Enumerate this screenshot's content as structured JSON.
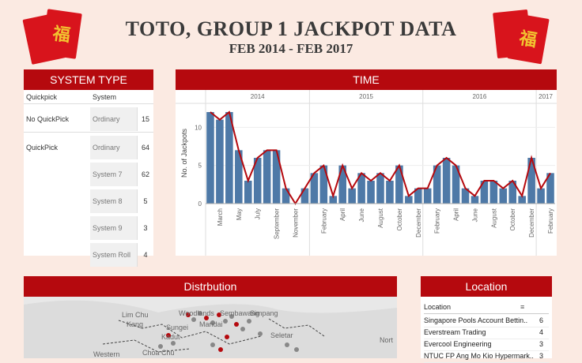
{
  "header": {
    "title": "TOTO, GROUP 1 JACKPOT DATA",
    "subtitle": "FEB 2014 - FEB 2017",
    "envelope_glyph": "福"
  },
  "system_type": {
    "title": "SYSTEM TYPE",
    "col_quickpick": "Quickpick",
    "col_system": "System",
    "rows": [
      {
        "quickpick": "No QuickPick",
        "system": "Ordinary",
        "count": "15"
      },
      {
        "quickpick": "QuickPick",
        "system": "Ordinary",
        "count": "64"
      },
      {
        "quickpick": "",
        "system": "System 7",
        "count": "62"
      },
      {
        "quickpick": "",
        "system": "System 8",
        "count": "5"
      },
      {
        "quickpick": "",
        "system": "System 9",
        "count": "3"
      },
      {
        "quickpick": "",
        "system": "System Roll",
        "count": "4"
      }
    ]
  },
  "time": {
    "title": "TIME",
    "years": [
      "2014",
      "2015",
      "2016",
      "2017"
    ],
    "ylabel": "No. of Jackpots",
    "yticks": [
      "0",
      "5",
      "10"
    ],
    "month_labels": [
      {
        "i": 1,
        "t": "March"
      },
      {
        "i": 3,
        "t": "May"
      },
      {
        "i": 5,
        "t": "July"
      },
      {
        "i": 7,
        "t": "September"
      },
      {
        "i": 9,
        "t": "November"
      },
      {
        "i": 12,
        "t": "February"
      },
      {
        "i": 14,
        "t": "April"
      },
      {
        "i": 16,
        "t": "June"
      },
      {
        "i": 18,
        "t": "August"
      },
      {
        "i": 20,
        "t": "October"
      },
      {
        "i": 22,
        "t": "December"
      },
      {
        "i": 24,
        "t": "February"
      },
      {
        "i": 26,
        "t": "April"
      },
      {
        "i": 28,
        "t": "June"
      },
      {
        "i": 30,
        "t": "August"
      },
      {
        "i": 32,
        "t": "October"
      },
      {
        "i": 34,
        "t": "December"
      },
      {
        "i": 36,
        "t": "February"
      }
    ]
  },
  "distribution": {
    "title": "Distrbution",
    "map_labels": [
      "Lim Chu",
      "Kang",
      "Woodlands",
      "Sembawang",
      "Simpang",
      "Sungei",
      "Kadut",
      "Mandai",
      "Seletar",
      "Western",
      "Choa Chu",
      "Nort"
    ]
  },
  "location": {
    "title": "Location",
    "col_label": "Location",
    "rows": [
      {
        "name": "Singapore Pools Account Bettin..",
        "count": "6"
      },
      {
        "name": "Everstream Trading",
        "count": "4"
      },
      {
        "name": "Evercool Engineering",
        "count": "3"
      },
      {
        "name": "NTUC FP Ang Mo Kio Hypermark..",
        "count": "3"
      }
    ]
  },
  "colors": {
    "accent": "#b5090e",
    "bar": "#4e79a7",
    "line": "#b5090e",
    "background": "#fbeae2"
  },
  "chart_data": {
    "type": "bar",
    "title": "TIME",
    "ylabel": "No. of Jackpots",
    "xlabel": "",
    "ylim": [
      0,
      12
    ],
    "x": [
      "2014-02",
      "2014-03",
      "2014-04",
      "2014-05",
      "2014-06",
      "2014-07",
      "2014-08",
      "2014-09",
      "2014-10",
      "2014-11",
      "2014-12",
      "2015-01",
      "2015-02",
      "2015-03",
      "2015-04",
      "2015-05",
      "2015-06",
      "2015-07",
      "2015-08",
      "2015-09",
      "2015-10",
      "2015-11",
      "2015-12",
      "2016-01",
      "2016-02",
      "2016-03",
      "2016-04",
      "2016-05",
      "2016-06",
      "2016-07",
      "2016-08",
      "2016-09",
      "2016-10",
      "2016-11",
      "2016-12",
      "2017-01",
      "2017-02"
    ],
    "values": [
      12,
      11,
      12,
      7,
      3,
      6,
      7,
      7,
      2,
      0,
      2,
      4,
      5,
      1,
      5,
      2,
      4,
      3,
      4,
      3,
      5,
      1,
      2,
      2,
      5,
      6,
      5,
      2,
      1,
      3,
      3,
      2,
      3,
      1,
      6,
      2,
      4
    ],
    "overlay": "line"
  }
}
